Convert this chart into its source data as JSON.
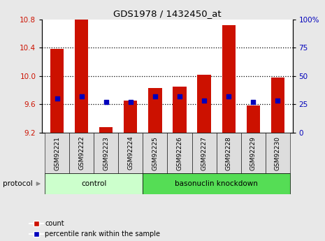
{
  "title": "GDS1978 / 1432450_at",
  "samples": [
    "GSM92221",
    "GSM92222",
    "GSM92223",
    "GSM92224",
    "GSM92225",
    "GSM92226",
    "GSM92227",
    "GSM92228",
    "GSM92229",
    "GSM92230"
  ],
  "count_values": [
    10.38,
    10.8,
    9.28,
    9.65,
    9.83,
    9.85,
    10.02,
    10.72,
    9.58,
    9.98
  ],
  "percentile_values": [
    30,
    32,
    27,
    27,
    32,
    32,
    28,
    32,
    27,
    28
  ],
  "ylim_left": [
    9.2,
    10.8
  ],
  "ylim_right": [
    0,
    100
  ],
  "yticks_left": [
    9.2,
    9.6,
    10.0,
    10.4,
    10.8
  ],
  "yticks_right": [
    0,
    25,
    50,
    75,
    100
  ],
  "bar_color": "#cc1100",
  "dot_color": "#0000bb",
  "bar_width": 0.55,
  "control_color": "#ccffcc",
  "knockdown_color": "#55dd55",
  "grid_color": "black",
  "bg_color": "#e8e8e8",
  "plot_bg": "white",
  "tick_cell_color": "#dddddd"
}
